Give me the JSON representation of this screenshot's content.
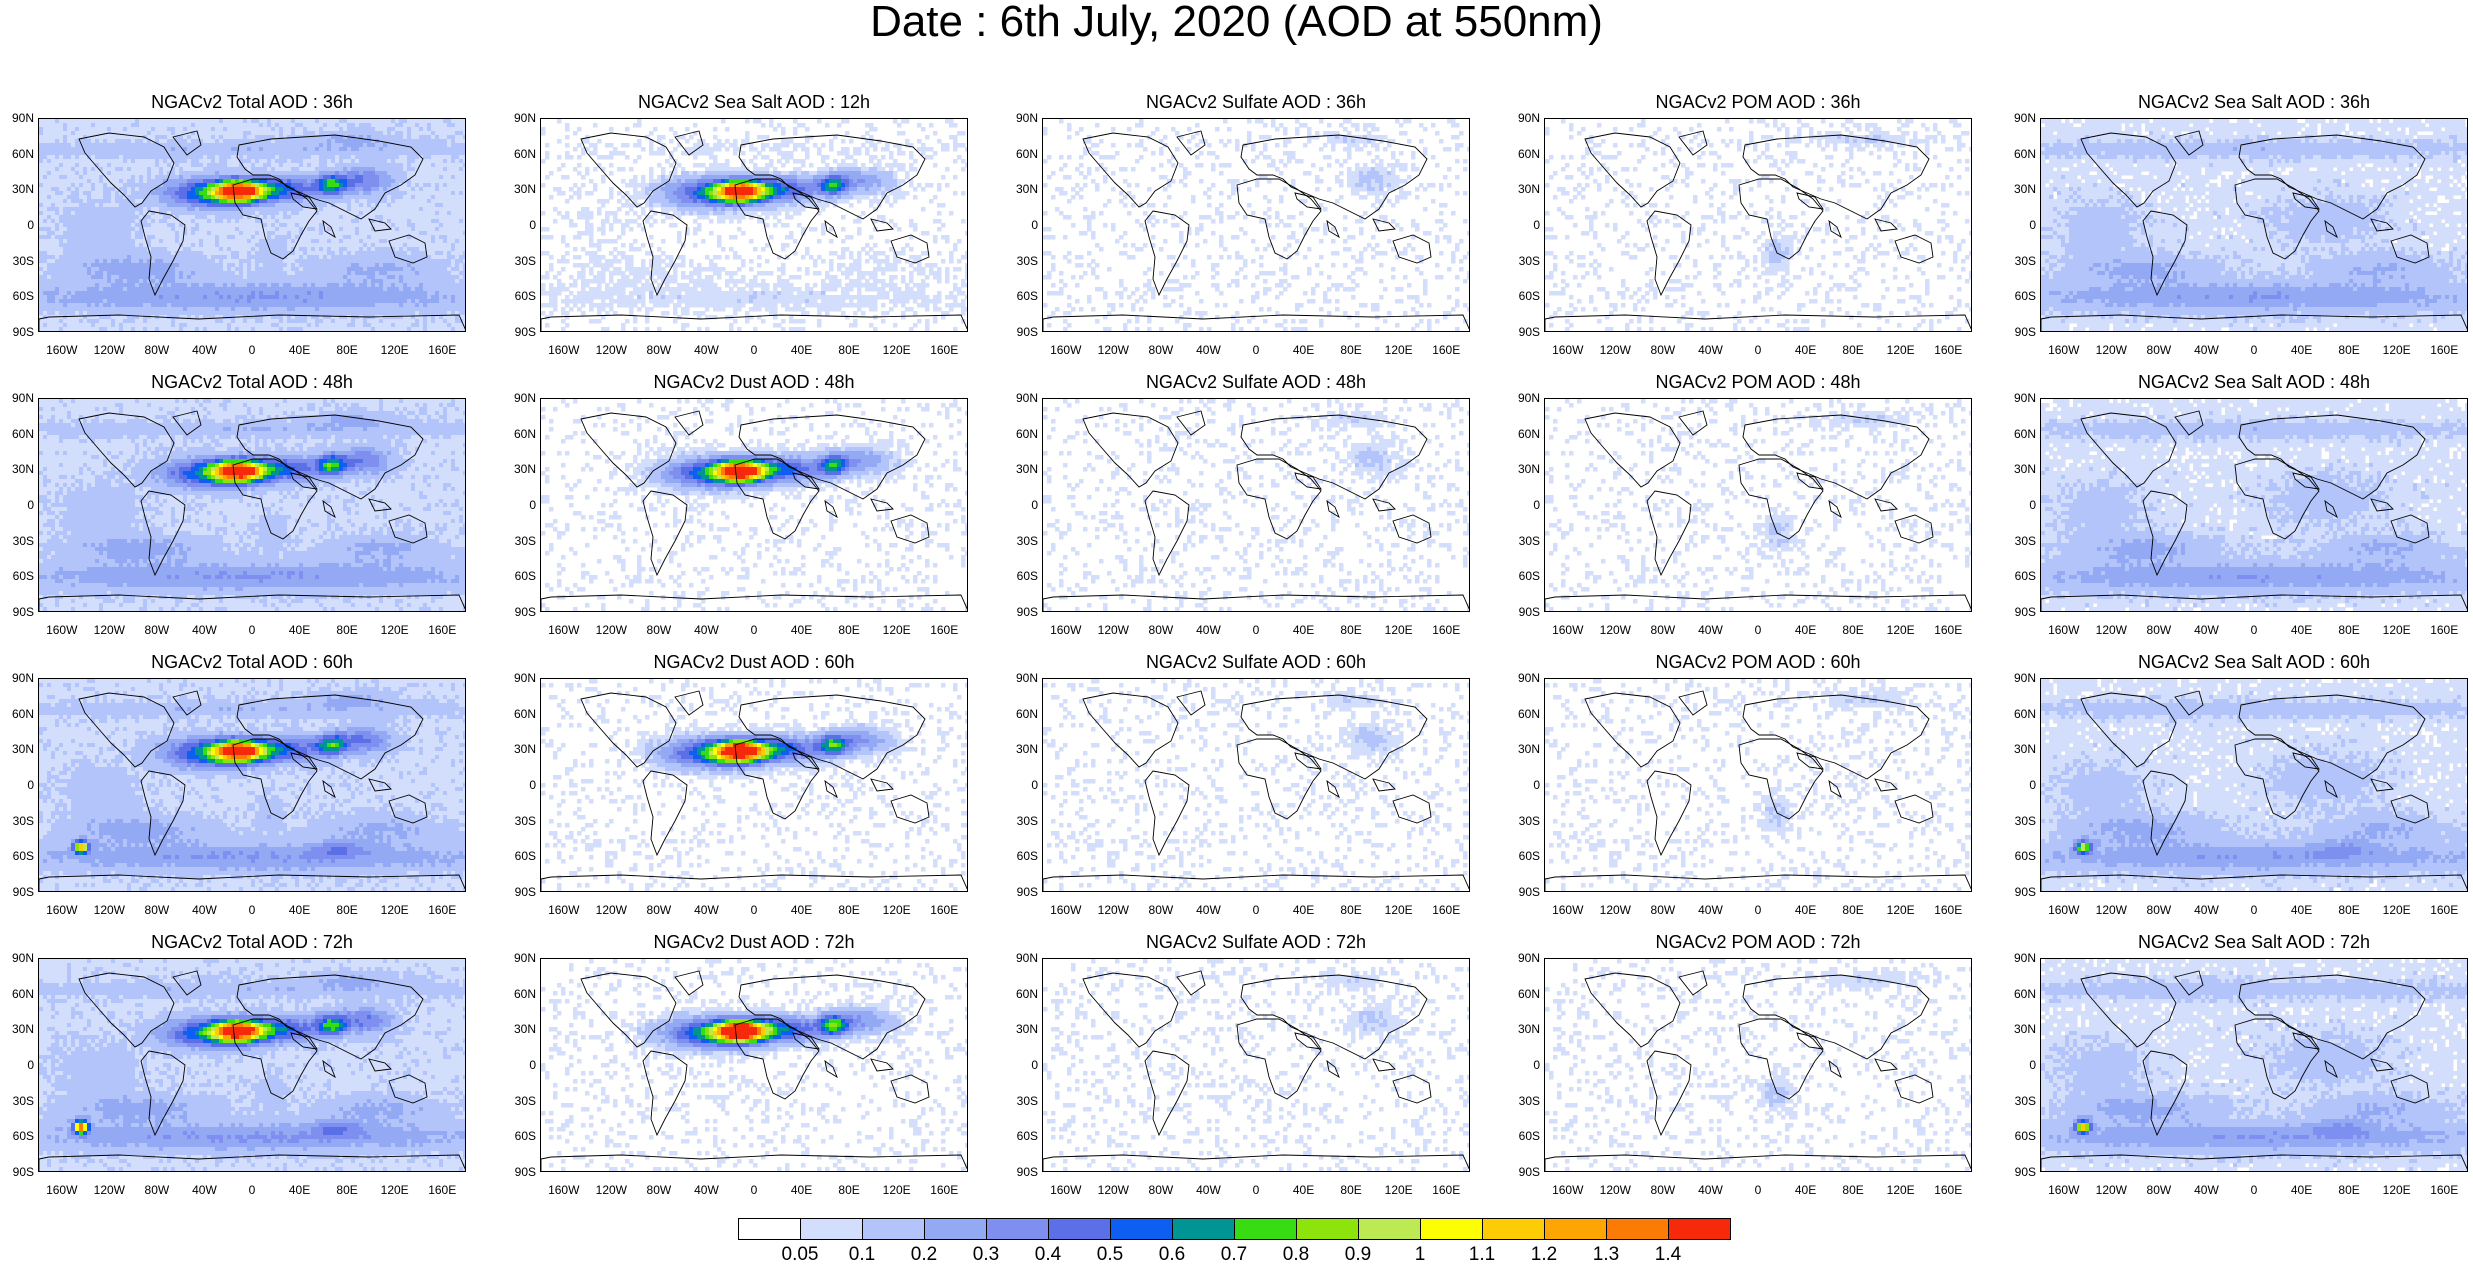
{
  "title": "Date : 6th July, 2020 (AOD at 550nm)",
  "lat_labels": [
    "90N",
    "60N",
    "30N",
    "0",
    "30S",
    "60S",
    "90S"
  ],
  "lon_labels": [
    "160W",
    "120W",
    "80W",
    "40W",
    "0",
    "40E",
    "80E",
    "120E",
    "160E"
  ],
  "panels": [
    [
      "NGACv2 Total AOD : 36h",
      "NGACv2 Sea Salt  AOD : 12h",
      "NGACv2 Sulfate AOD : 36h",
      "NGACv2 POM AOD : 36h",
      "NGACv2 Sea Salt AOD : 36h"
    ],
    [
      "NGACv2 Total AOD : 48h",
      "NGACv2 Dust AOD : 48h",
      "NGACv2 Sulfate AOD : 48h",
      "NGACv2 POM AOD : 48h",
      "NGACv2 Sea Salt AOD : 48h"
    ],
    [
      "NGACv2 Total AOD : 60h",
      "NGACv2 Dust AOD : 60h",
      "NGACv2 Sulfate AOD : 60h",
      "NGACv2 POM AOD : 60h",
      "NGACv2 Sea Salt AOD : 60h"
    ],
    [
      "NGACv2 Total AOD : 72h",
      "NGACv2 Dust AOD : 72h",
      "NGACv2 Sulfate AOD : 72h",
      "NGACv2 POM AOD : 72h",
      "NGACv2 Sea Salt  AOD : 72h"
    ]
  ],
  "colorbar": {
    "labels": [
      "0.05",
      "0.1",
      "0.2",
      "0.3",
      "0.4",
      "0.5",
      "0.6",
      "0.7",
      "0.8",
      "0.9",
      "1",
      "1.1",
      "1.2",
      "1.3",
      "1.4"
    ],
    "colors": [
      "#ffffff",
      "#d3defc",
      "#b2c4f9",
      "#94a9f4",
      "#7f8ff0",
      "#5b6fe6",
      "#0f5ef2",
      "#009493",
      "#37dc12",
      "#8ce40c",
      "#bde952",
      "#fdfd03",
      "#fdcc05",
      "#fda502",
      "#fa7c06",
      "#f62a0b"
    ]
  }
}
